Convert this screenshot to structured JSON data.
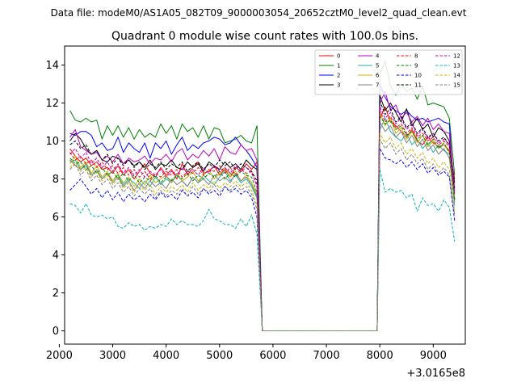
{
  "suptitle": "Data file: modeM0/AS1A05_082T09_9000003054_20652cztM0_level2_quad_clean.evt",
  "chart_data": {
    "type": "line",
    "title": "Quadrant 0 module wise count rates with 100.0s bins.",
    "xlabel": "",
    "ylabel": "",
    "x_offset_label": "+3.0165e8",
    "xlim": [
      2100,
      9600
    ],
    "ylim": [
      -0.7,
      15
    ],
    "xticks": [
      2000,
      3000,
      4000,
      5000,
      6000,
      7000,
      8000,
      9000
    ],
    "xtick_labels": [
      "2000",
      "3000",
      "4000",
      "5000",
      "6000",
      "7000",
      "8000",
      "9000"
    ],
    "yticks": [
      0,
      2,
      4,
      6,
      8,
      10,
      12,
      14
    ],
    "ytick_labels": [
      "0",
      "2",
      "4",
      "6",
      "8",
      "10",
      "12",
      "14"
    ],
    "legend_location": "top-right",
    "x_start": 2200,
    "x_step": 100,
    "gap_start": 5800,
    "gap_end": 7950,
    "second_segment_start": 8000,
    "second_segment_end": 9400,
    "series": [
      {
        "name": "0",
        "color": "#ff0000",
        "dashed": false,
        "seg1": [
          9.6,
          9.2,
          8.9,
          9.1,
          8.7,
          8.9,
          8.5,
          8.6,
          8.3,
          8.7,
          8.2,
          8.5,
          8.0,
          8.4,
          8.8,
          8.3,
          8.1,
          8.6,
          8.2,
          8.5,
          8.0,
          8.8,
          8.2,
          8.6,
          8.9,
          8.3,
          8.4,
          8.7,
          8.2,
          8.5,
          8.1,
          8.6,
          8.4,
          8.8,
          8.5,
          8.9
        ],
        "seg2": [
          11.2,
          11.8,
          11.0,
          10.8,
          10.5,
          10.2,
          10.6,
          10.0,
          9.8,
          10.2,
          9.9,
          9.7,
          9.8,
          9.5,
          8.0
        ]
      },
      {
        "name": "1",
        "color": "#008000",
        "dashed": false,
        "seg1": [
          11.6,
          11.1,
          11.0,
          11.2,
          11.0,
          11.1,
          10.1,
          10.8,
          10.3,
          10.8,
          10.2,
          10.7,
          10.1,
          10.6,
          10.2,
          10.4,
          10.2,
          10.9,
          10.4,
          10.8,
          10.1,
          10.9,
          10.5,
          10.7,
          10.2,
          10.8,
          10.1,
          10.7,
          10.6,
          9.9,
          10.0,
          10.1,
          10.3,
          10.0,
          9.9,
          10.8
        ],
        "seg2": [
          13.5,
          14.2,
          12.9,
          12.4,
          13.0,
          12.6,
          12.8,
          12.2,
          12.9,
          11.9,
          12.0,
          11.9,
          11.8,
          11.2,
          8.2
        ]
      },
      {
        "name": "2",
        "color": "#0000ff",
        "dashed": false,
        "seg1": [
          10.4,
          10.3,
          10.5,
          10.5,
          10.3,
          9.7,
          9.9,
          9.5,
          9.6,
          10.2,
          9.4,
          9.9,
          9.6,
          9.4,
          9.9,
          9.1,
          9.9,
          9.6,
          10.0,
          9.3,
          9.8,
          10.2,
          9.5,
          9.8,
          9.6,
          9.9,
          10.0,
          10.2,
          10.1,
          9.8,
          9.9,
          10.2,
          9.8,
          9.5,
          9.1,
          8.6
        ],
        "seg2": [
          13.0,
          12.3,
          11.8,
          11.6,
          11.4,
          11.6,
          11.3,
          11.1,
          11.2,
          11.0,
          11.1,
          11.2,
          11.0,
          10.9,
          6.9
        ]
      },
      {
        "name": "3",
        "color": "#000000",
        "dashed": false,
        "seg1": [
          10.0,
          10.4,
          10.1,
          9.6,
          9.3,
          9.5,
          9.0,
          8.9,
          9.2,
          9.1,
          8.8,
          9.0,
          8.7,
          8.9,
          8.6,
          9.0,
          8.5,
          8.8,
          8.7,
          9.0,
          8.6,
          8.5,
          8.9,
          8.6,
          8.8,
          8.4,
          8.9,
          8.7,
          8.5,
          8.9,
          8.6,
          8.8,
          8.5,
          9.0,
          8.7,
          8.5
        ],
        "seg2": [
          12.4,
          11.6,
          12.0,
          11.5,
          11.0,
          11.7,
          10.8,
          11.2,
          10.6,
          10.9,
          10.2,
          10.7,
          10.5,
          10.0,
          7.8
        ]
      },
      {
        "name": "4",
        "color": "#c000c0",
        "dashed": false,
        "seg1": [
          10.2,
          10.6,
          9.7,
          9.5,
          9.3,
          9.4,
          9.0,
          9.2,
          8.9,
          9.3,
          8.8,
          9.1,
          8.9,
          9.0,
          9.2,
          8.8,
          9.1,
          9.0,
          9.3,
          8.9,
          9.4,
          9.6,
          9.0,
          9.3,
          9.1,
          9.5,
          9.2,
          9.6,
          9.0,
          9.7,
          9.4,
          9.3,
          9.8,
          9.5,
          9.6,
          9.0
        ],
        "seg2": [
          12.0,
          12.6,
          11.6,
          11.9,
          11.2,
          11.5,
          11.0,
          11.3,
          10.8,
          11.2,
          10.6,
          10.9,
          10.5,
          10.4,
          7.5
        ]
      },
      {
        "name": "5",
        "color": "#20b2aa",
        "dashed": false,
        "seg1": [
          8.9,
          9.0,
          8.5,
          8.7,
          8.2,
          8.4,
          8.0,
          8.3,
          7.9,
          8.2,
          7.7,
          8.0,
          7.8,
          7.5,
          7.9,
          7.6,
          8.1,
          7.7,
          8.0,
          7.8,
          8.2,
          7.9,
          7.6,
          8.1,
          7.8,
          8.2,
          7.9,
          7.7,
          8.1,
          8.4,
          7.9,
          8.2,
          7.8,
          8.0,
          7.6,
          7.0
        ],
        "seg2": [
          10.6,
          11.2,
          10.5,
          10.2,
          10.0,
          10.4,
          9.8,
          10.1,
          9.6,
          9.9,
          9.4,
          9.8,
          9.5,
          9.3,
          6.6
        ]
      },
      {
        "name": "6",
        "color": "#c8b400",
        "dashed": false,
        "seg1": [
          8.8,
          9.2,
          8.6,
          8.9,
          8.3,
          8.7,
          8.1,
          8.4,
          7.9,
          8.3,
          7.8,
          8.1,
          7.6,
          8.0,
          7.7,
          8.2,
          7.8,
          8.0,
          8.2,
          7.8,
          8.3,
          7.9,
          8.1,
          8.4,
          7.9,
          8.2,
          8.5,
          8.0,
          8.3,
          8.6,
          8.1,
          8.4,
          7.9,
          8.2,
          7.8,
          7.2
        ],
        "seg2": [
          11.5,
          10.8,
          11.2,
          10.4,
          10.7,
          10.1,
          10.5,
          9.9,
          10.3,
          9.7,
          10.0,
          9.6,
          9.8,
          9.4,
          7.0
        ]
      },
      {
        "name": "7",
        "color": "#808080",
        "dashed": false,
        "seg1": [
          9.0,
          8.7,
          8.5,
          8.8,
          8.2,
          8.5,
          8.0,
          8.3,
          7.8,
          8.1,
          7.6,
          7.9,
          7.4,
          7.8,
          7.5,
          7.9,
          7.6,
          7.8,
          7.5,
          8.0,
          7.7,
          7.9,
          7.6,
          8.1,
          7.8,
          8.0,
          7.7,
          8.2,
          7.9,
          8.1,
          7.8,
          8.3,
          7.9,
          8.1,
          7.7,
          7.1
        ],
        "seg2": [
          11.0,
          10.5,
          10.8,
          10.2,
          10.5,
          9.9,
          10.3,
          9.7,
          10.1,
          9.5,
          9.8,
          9.3,
          9.6,
          9.1,
          6.8
        ]
      },
      {
        "name": "8",
        "color": "#ff0000",
        "dashed": true,
        "seg1": [
          9.4,
          9.0,
          9.2,
          8.8,
          9.0,
          8.6,
          8.9,
          8.5,
          8.7,
          8.3,
          8.6,
          8.2,
          8.5,
          8.1,
          8.4,
          8.0,
          8.3,
          8.1,
          8.4,
          8.2,
          8.5,
          8.1,
          8.4,
          8.3,
          8.6,
          8.2,
          8.5,
          8.4,
          8.7,
          8.3,
          8.6,
          8.2,
          8.5,
          8.3,
          8.4,
          7.6
        ],
        "seg2": [
          11.6,
          11.0,
          11.3,
          10.7,
          10.9,
          10.4,
          10.7,
          10.2,
          10.4,
          10.0,
          10.2,
          9.8,
          10.0,
          9.7,
          7.2
        ]
      },
      {
        "name": "9",
        "color": "#008000",
        "dashed": true,
        "seg1": [
          9.1,
          8.8,
          8.9,
          8.5,
          8.7,
          8.3,
          8.6,
          8.2,
          8.4,
          8.0,
          8.3,
          7.9,
          8.2,
          7.8,
          8.1,
          7.9,
          8.2,
          7.8,
          8.1,
          7.9,
          8.2,
          8.0,
          8.3,
          7.9,
          8.2,
          8.0,
          8.3,
          8.1,
          8.4,
          8.0,
          8.3,
          8.1,
          8.4,
          8.2,
          8.1,
          7.3
        ],
        "seg2": [
          11.3,
          10.9,
          11.1,
          10.6,
          10.8,
          10.3,
          10.5,
          10.1,
          10.3,
          9.8,
          10.1,
          9.6,
          9.9,
          9.4,
          6.9
        ]
      },
      {
        "name": "10",
        "color": "#0000ff",
        "dashed": true,
        "seg1": [
          7.4,
          7.7,
          8.0,
          7.6,
          7.2,
          7.5,
          7.0,
          7.4,
          6.9,
          7.3,
          6.8,
          7.2,
          6.9,
          7.1,
          6.8,
          7.2,
          6.9,
          7.3,
          7.0,
          7.2,
          6.9,
          7.4,
          7.1,
          7.3,
          7.0,
          7.5,
          7.2,
          7.4,
          7.1,
          7.6,
          7.3,
          7.5,
          7.2,
          7.4,
          7.0,
          6.0
        ],
        "seg2": [
          9.6,
          9.1,
          9.0,
          8.8,
          9.0,
          8.6,
          8.9,
          8.5,
          8.8,
          8.3,
          8.6,
          8.2,
          8.4,
          8.1,
          5.8
        ]
      },
      {
        "name": "11",
        "color": "#000000",
        "dashed": true,
        "seg1": [
          9.8,
          10.0,
          9.6,
          9.8,
          9.3,
          9.5,
          9.0,
          9.3,
          8.8,
          9.1,
          8.7,
          9.0,
          8.6,
          8.9,
          8.5,
          8.8,
          8.6,
          8.9,
          8.5,
          8.8,
          8.6,
          8.9,
          8.4,
          8.7,
          8.9,
          8.5,
          8.8,
          8.6,
          9.0,
          8.7,
          8.9,
          8.5,
          8.8,
          8.6,
          8.4,
          7.9
        ],
        "seg2": [
          12.1,
          11.4,
          11.7,
          11.0,
          11.3,
          10.7,
          11.0,
          10.4,
          10.7,
          10.2,
          10.4,
          10.0,
          10.2,
          9.8,
          7.4
        ]
      },
      {
        "name": "12",
        "color": "#c000c0",
        "dashed": true,
        "seg1": [
          9.3,
          9.6,
          9.1,
          9.4,
          8.8,
          9.1,
          8.6,
          8.9,
          8.4,
          8.8,
          8.3,
          8.6,
          8.2,
          8.5,
          8.1,
          8.4,
          8.2,
          8.5,
          8.1,
          8.4,
          8.2,
          8.6,
          8.3,
          8.5,
          8.2,
          8.6,
          8.3,
          8.7,
          8.4,
          8.6,
          8.3,
          8.7,
          8.4,
          8.6,
          8.3,
          7.7
        ],
        "seg2": [
          11.8,
          11.2,
          11.5,
          10.9,
          11.2,
          10.6,
          10.9,
          10.3,
          10.6,
          10.1,
          10.4,
          9.9,
          10.1,
          9.8,
          7.3
        ]
      },
      {
        "name": "13",
        "color": "#00b5b5",
        "dashed": true,
        "seg1": [
          6.7,
          6.6,
          6.2,
          6.7,
          6.1,
          6.0,
          6.1,
          5.9,
          6.0,
          5.5,
          5.4,
          5.7,
          5.5,
          5.6,
          5.3,
          5.5,
          5.4,
          5.6,
          5.5,
          5.9,
          5.6,
          5.8,
          5.6,
          5.6,
          5.5,
          5.8,
          6.4,
          5.9,
          5.8,
          5.6,
          5.6,
          5.4,
          5.9,
          5.5,
          6.1,
          5.1
        ],
        "seg2": [
          8.5,
          7.3,
          7.5,
          7.3,
          7.4,
          7.0,
          7.2,
          6.3,
          7.0,
          6.6,
          6.7,
          6.3,
          6.9,
          6.5,
          4.7
        ]
      },
      {
        "name": "14",
        "color": "#c8b400",
        "dashed": true,
        "seg1": [
          8.6,
          8.9,
          8.4,
          8.6,
          8.1,
          8.4,
          7.9,
          8.2,
          7.7,
          8.0,
          7.5,
          7.8,
          7.3,
          7.7,
          7.4,
          7.7,
          7.2,
          7.6,
          7.3,
          7.6,
          7.4,
          7.7,
          7.3,
          7.8,
          7.4,
          7.7,
          7.5,
          7.9,
          7.5,
          7.8,
          7.6,
          7.9,
          7.6,
          7.8,
          7.4,
          6.6
        ],
        "seg2": [
          10.4,
          9.9,
          10.2,
          9.6,
          9.9,
          9.3,
          9.6,
          9.1,
          9.4,
          8.8,
          9.1,
          8.6,
          8.9,
          8.5,
          6.3
        ]
      },
      {
        "name": "15",
        "color": "#808080",
        "dashed": true,
        "seg1": [
          8.5,
          8.8,
          8.2,
          8.5,
          7.9,
          8.2,
          7.7,
          8.0,
          7.5,
          7.8,
          7.3,
          7.6,
          7.1,
          7.5,
          7.2,
          7.5,
          7.0,
          7.4,
          7.1,
          7.4,
          7.2,
          7.5,
          7.1,
          7.6,
          7.2,
          7.5,
          7.3,
          7.7,
          7.3,
          7.6,
          7.4,
          7.7,
          7.4,
          7.6,
          7.2,
          6.4
        ],
        "seg2": [
          10.1,
          9.6,
          9.9,
          9.3,
          9.6,
          9.0,
          9.3,
          8.8,
          9.1,
          8.5,
          8.8,
          8.3,
          8.6,
          8.2,
          6.1
        ]
      }
    ]
  }
}
